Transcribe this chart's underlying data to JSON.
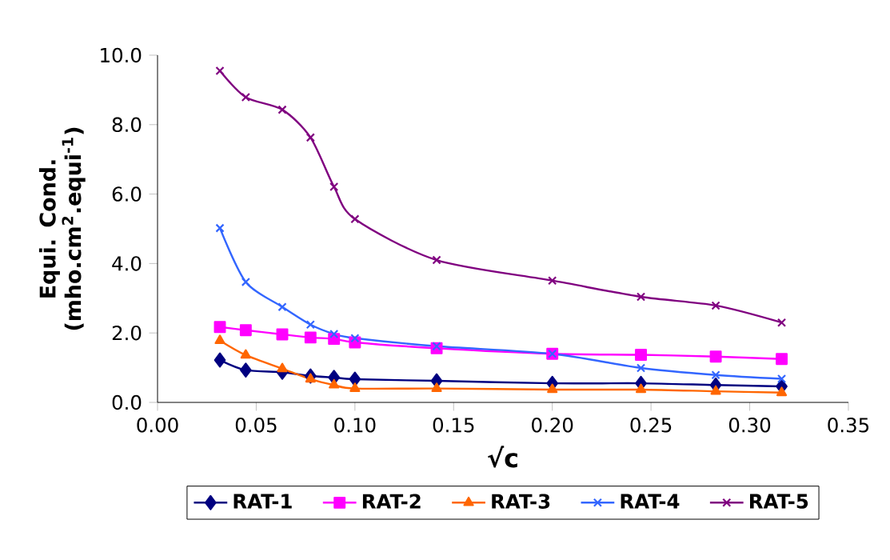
{
  "chart_data": {
    "type": "line",
    "xlabel": "√c",
    "ylabel": "Equi. Cond. (mho.cm$^{2}$.equi$^{-1}$)",
    "x": [
      0.0316,
      0.0447,
      0.0632,
      0.0775,
      0.0894,
      0.1,
      0.1414,
      0.2,
      0.2449,
      0.2828,
      0.3162
    ],
    "series": [
      {
        "name": "RAT-1",
        "color": "#000080",
        "marker": "diamond",
        "values": [
          1.22,
          0.93,
          0.87,
          0.76,
          0.72,
          0.67,
          0.62,
          0.55,
          0.55,
          0.5,
          0.46
        ]
      },
      {
        "name": "RAT-2",
        "color": "#ff00ff",
        "marker": "square",
        "values": [
          2.17,
          2.08,
          1.96,
          1.87,
          1.83,
          1.73,
          1.56,
          1.4,
          1.37,
          1.32,
          1.25
        ]
      },
      {
        "name": "RAT-3",
        "color": "#ff6600",
        "marker": "triangle",
        "values": [
          1.78,
          1.36,
          0.97,
          0.67,
          0.5,
          0.4,
          0.4,
          0.37,
          0.37,
          0.32,
          0.28
        ]
      },
      {
        "name": "RAT-4",
        "color": "#3366ff",
        "marker": "cross",
        "values": [
          5.02,
          3.47,
          2.75,
          2.24,
          1.97,
          1.85,
          1.62,
          1.4,
          0.99,
          0.79,
          0.68
        ]
      },
      {
        "name": "RAT-5",
        "color": "#800080",
        "marker": "cross",
        "values": [
          9.55,
          8.79,
          8.43,
          7.63,
          6.21,
          5.28,
          4.1,
          3.51,
          3.04,
          2.79,
          2.3
        ]
      }
    ],
    "xlim": [
      0,
      0.35
    ],
    "ylim": [
      0,
      10
    ],
    "xticks": [
      {
        "value": 0,
        "label": "0.00"
      },
      {
        "value": 0.05,
        "label": "0.05"
      },
      {
        "value": 0.1,
        "label": "0.10"
      },
      {
        "value": 0.15,
        "label": "0.15"
      },
      {
        "value": 0.2,
        "label": "0.20"
      },
      {
        "value": 0.25,
        "label": "0.25"
      },
      {
        "value": 0.3,
        "label": "0.30"
      },
      {
        "value": 0.35,
        "label": "0.35"
      }
    ],
    "yticks": [
      {
        "value": 0,
        "label": "0.0"
      },
      {
        "value": 2,
        "label": "2.0"
      },
      {
        "value": 4,
        "label": "4.0"
      },
      {
        "value": 6,
        "label": "6.0"
      },
      {
        "value": 8,
        "label": "8.0"
      },
      {
        "value": 10,
        "label": "10.0"
      }
    ],
    "legend": "bottom",
    "grid": false
  }
}
